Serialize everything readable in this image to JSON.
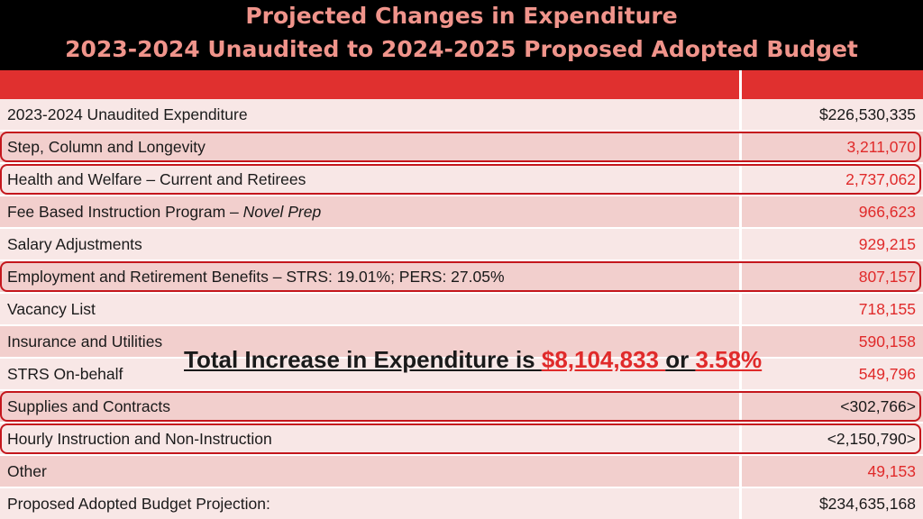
{
  "header": {
    "title_line1": "Projected Changes in Expenditure",
    "title_line2": "2023-2024 Unaudited to 2024-2025 Proposed Adopted Budget"
  },
  "rows": [
    {
      "label": "2023-2024 Unaudited Expenditure",
      "value": "$226,530,335"
    },
    {
      "label": "Step, Column and Longevity",
      "value": "3,211,070"
    },
    {
      "label": "Health and Welfare – Current and Retirees",
      "value": "2,737,062"
    },
    {
      "label": "Fee Based Instruction Program – ",
      "label_italic": "Novel Prep",
      "value": "966,623"
    },
    {
      "label": "Salary Adjustments",
      "value": "929,215"
    },
    {
      "label": "Employment and Retirement Benefits – STRS: 19.01%; PERS: 27.05%",
      "value": "807,157"
    },
    {
      "label": "Vacancy List",
      "value": "718,155"
    },
    {
      "label": "Insurance and Utilities",
      "value": "590,158"
    },
    {
      "label": "STRS On-behalf",
      "value": "549,796"
    },
    {
      "label": "Supplies and Contracts",
      "value": "<302,766>"
    },
    {
      "label": "Hourly Instruction and Non-Instruction",
      "value": "<2,150,790>"
    },
    {
      "label": "Other",
      "value": "49,153"
    },
    {
      "label": "Proposed Adopted Budget Projection:",
      "value": "$234,635,168"
    }
  ],
  "banner": {
    "prefix": "Total Increase in Expenditure is ",
    "amount": "$8,104,833 ",
    "middle": "or ",
    "percent": "3.58%"
  },
  "colors": {
    "title": "#f0948b",
    "header_bar": "#e0302f",
    "value_red": "#e02a2a",
    "outline": "#c4161c"
  }
}
